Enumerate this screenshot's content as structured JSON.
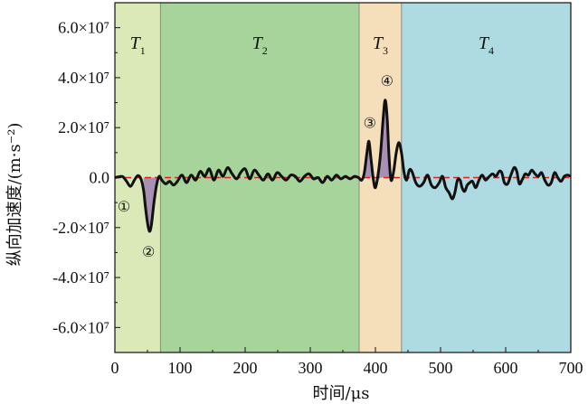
{
  "chart_data": {
    "type": "line",
    "xlabel": "时间/μs",
    "ylabel": "纵向加速度/(m·s⁻²)",
    "xlim": [
      0,
      700
    ],
    "ylim": [
      -70000000,
      70000000
    ],
    "x_ticks": [
      {
        "value": 0,
        "label": "0"
      },
      {
        "value": 100,
        "label": "100"
      },
      {
        "value": 200,
        "label": "200"
      },
      {
        "value": 300,
        "label": "300"
      },
      {
        "value": 400,
        "label": "400"
      },
      {
        "value": 500,
        "label": "500"
      },
      {
        "value": 600,
        "label": "600"
      },
      {
        "value": 700,
        "label": "700"
      }
    ],
    "y_ticks": [
      {
        "value": 60000000,
        "label": "6.0×10⁷"
      },
      {
        "value": 40000000,
        "label": "4.0×10⁷"
      },
      {
        "value": 20000000,
        "label": "2.0×10⁷"
      },
      {
        "value": 0,
        "label": "0.0"
      },
      {
        "value": -20000000,
        "label": "-2.0×10⁷"
      },
      {
        "value": -40000000,
        "label": "-4.0×10⁷"
      },
      {
        "value": -60000000,
        "label": "-6.0×10⁷"
      }
    ],
    "regions": [
      {
        "name": "T",
        "sub": "1",
        "x0": 0,
        "x1": 70,
        "color": "#dbe9b9"
      },
      {
        "name": "T",
        "sub": "2",
        "x0": 70,
        "x1": 375,
        "color": "#a6d49a"
      },
      {
        "name": "T",
        "sub": "3",
        "x0": 375,
        "x1": 440,
        "color": "#f5dfbb"
      },
      {
        "name": "T",
        "sub": "4",
        "x0": 440,
        "x1": 700,
        "color": "#aedbe2"
      }
    ],
    "reference_line": {
      "y": 0,
      "color": "#e02020",
      "style": "dashed"
    },
    "series": [
      {
        "color": "#111111",
        "points": [
          [
            0,
            0
          ],
          [
            6,
            300000
          ],
          [
            12,
            400000
          ],
          [
            18,
            -1500000
          ],
          [
            24,
            -3500000
          ],
          [
            30,
            -1000000
          ],
          [
            35,
            800000
          ],
          [
            40,
            -500000
          ],
          [
            44,
            -5000000
          ],
          [
            47,
            -12000000
          ],
          [
            50,
            -18000000
          ],
          [
            53,
            -21500000
          ],
          [
            56,
            -19000000
          ],
          [
            60,
            -10000000
          ],
          [
            64,
            -3000000
          ],
          [
            68,
            500000
          ],
          [
            72,
            -1000000
          ],
          [
            78,
            -2500000
          ],
          [
            84,
            -1500000
          ],
          [
            90,
            -3000000
          ],
          [
            96,
            -1500000
          ],
          [
            103,
            1000000
          ],
          [
            110,
            -2000000
          ],
          [
            117,
            1000000
          ],
          [
            124,
            -1000000
          ],
          [
            131,
            2500000
          ],
          [
            138,
            500000
          ],
          [
            145,
            3500000
          ],
          [
            152,
            -1000000
          ],
          [
            159,
            3000000
          ],
          [
            166,
            500000
          ],
          [
            173,
            4000000
          ],
          [
            180,
            1500000
          ],
          [
            187,
            -500000
          ],
          [
            193,
            2000000
          ],
          [
            200,
            3500000
          ],
          [
            207,
            -500000
          ],
          [
            214,
            3000000
          ],
          [
            221,
            1000000
          ],
          [
            228,
            -1000000
          ],
          [
            235,
            1500000
          ],
          [
            242,
            -1000000
          ],
          [
            249,
            2000000
          ],
          [
            256,
            500000
          ],
          [
            263,
            -1000000
          ],
          [
            270,
            1000000
          ],
          [
            277,
            500000
          ],
          [
            284,
            -1500000
          ],
          [
            291,
            500000
          ],
          [
            298,
            1500000
          ],
          [
            305,
            -500000
          ],
          [
            312,
            0
          ],
          [
            319,
            -2000000
          ],
          [
            326,
            500000
          ],
          [
            333,
            -1000000
          ],
          [
            340,
            1000000
          ],
          [
            347,
            -500000
          ],
          [
            354,
            500000
          ],
          [
            361,
            -500000
          ],
          [
            368,
            500000
          ],
          [
            374,
            0
          ],
          [
            379,
            -1000000
          ],
          [
            383,
            2000000
          ],
          [
            387,
            10000000
          ],
          [
            390,
            14500000
          ],
          [
            393,
            8000000
          ],
          [
            397,
            -1000000
          ],
          [
            400,
            -4000000
          ],
          [
            404,
            1000000
          ],
          [
            408,
            10000000
          ],
          [
            412,
            24000000
          ],
          [
            415,
            31000000
          ],
          [
            418,
            24000000
          ],
          [
            421,
            8000000
          ],
          [
            424,
            -1000000
          ],
          [
            428,
            2500000
          ],
          [
            432,
            10000000
          ],
          [
            436,
            14000000
          ],
          [
            440,
            10000000
          ],
          [
            444,
            2000000
          ],
          [
            448,
            -1000000
          ],
          [
            452,
            3000000
          ],
          [
            456,
            2500000
          ],
          [
            462,
            -2000000
          ],
          [
            468,
            -3500000
          ],
          [
            474,
            -2000000
          ],
          [
            480,
            1000000
          ],
          [
            486,
            -3000000
          ],
          [
            492,
            -4000000
          ],
          [
            498,
            -2000000
          ],
          [
            503,
            500000
          ],
          [
            508,
            -4000000
          ],
          [
            513,
            -6000000
          ],
          [
            518,
            -8500000
          ],
          [
            522,
            -6000000
          ],
          [
            526,
            -1000000
          ],
          [
            530,
            -1000000
          ],
          [
            533,
            -4000000
          ],
          [
            537,
            -5500000
          ],
          [
            541,
            -3000000
          ],
          [
            545,
            -2000000
          ],
          [
            549,
            -1500000
          ],
          [
            554,
            -4000000
          ],
          [
            559,
            -1000000
          ],
          [
            564,
            1000000
          ],
          [
            569,
            -1000000
          ],
          [
            575,
            500000
          ],
          [
            580,
            1500000
          ],
          [
            585,
            500000
          ],
          [
            590,
            2500000
          ],
          [
            594,
            2000000
          ],
          [
            598,
            -2000000
          ],
          [
            603,
            -2500000
          ],
          [
            608,
            1000000
          ],
          [
            613,
            4000000
          ],
          [
            617,
            2500000
          ],
          [
            621,
            -2500000
          ],
          [
            626,
            -500000
          ],
          [
            630,
            1500000
          ],
          [
            635,
            1000000
          ],
          [
            640,
            3000000
          ],
          [
            645,
            1500000
          ],
          [
            650,
            500000
          ],
          [
            655,
            2000000
          ],
          [
            660,
            -1000000
          ],
          [
            665,
            -3000000
          ],
          [
            670,
            -2000000
          ],
          [
            675,
            2000000
          ],
          [
            680,
            0
          ],
          [
            685,
            -1500000
          ],
          [
            690,
            500000
          ],
          [
            695,
            1000000
          ],
          [
            700,
            500000
          ]
        ]
      }
    ],
    "shaded_peaks": [
      {
        "x0": 44,
        "x1": 67,
        "color": "#a890b4"
      },
      {
        "x0": 383,
        "x1": 396,
        "color": "#a890b4"
      },
      {
        "x0": 405,
        "x1": 423,
        "color": "#a890b4"
      }
    ],
    "peak_markers": [
      {
        "label": "①",
        "x": 25,
        "y": -3500000
      },
      {
        "label": "②",
        "x": 53,
        "y": -21500000
      },
      {
        "label": "③",
        "x": 390,
        "y": 14500000
      },
      {
        "label": "④",
        "x": 415,
        "y": 31000000
      }
    ]
  }
}
